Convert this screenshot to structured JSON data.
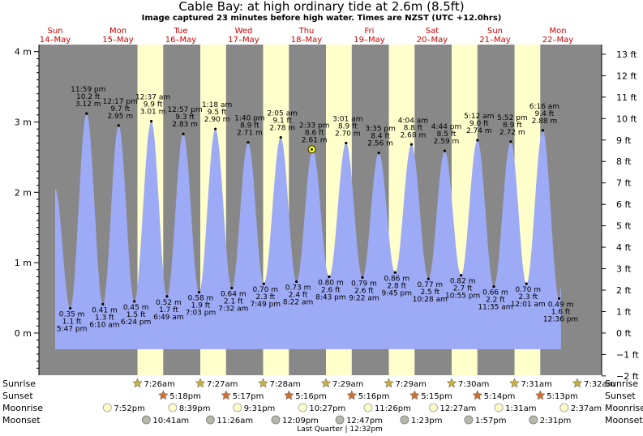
{
  "header": {
    "title": "Cable Bay: at high  ordinary tide at 2.6m (8.5ft)",
    "subtitle": "Image captured 23 minutes before high water. Times are NZST (UTC +12.0hrs)"
  },
  "colors": {
    "water": "#9daaf5",
    "night": "#888888",
    "day": "#ffffcc",
    "date_text": "#cc0000",
    "dot": "#ffff00"
  },
  "chart_data": {
    "type": "area",
    "title": "Cable Bay: at high  ordinary tide at 2.6m (8.5ft)",
    "subtitle": "Image captured 23 minutes before high water. Times are NZST (UTC +12.0hrs)",
    "y_left_ticks": [
      {
        "v": 4,
        "label": "4 m"
      },
      {
        "v": 3,
        "label": "3 m"
      },
      {
        "v": 2,
        "label": "2 m"
      },
      {
        "v": 1,
        "label": "1 m"
      },
      {
        "v": 0,
        "label": "0 m"
      }
    ],
    "y_right_ticks": [
      "13 ft",
      "12 ft",
      "11 ft",
      "10 ft",
      "9 ft",
      "8 ft",
      "7 ft",
      "6 ft",
      "5 ft",
      "4 ft",
      "3 ft",
      "2 ft",
      "1 ft",
      "0 ft",
      "−1 ft",
      "−2 ft"
    ],
    "ylim_m": [
      -0.6,
      4.1
    ],
    "days": [
      {
        "day": "Sun",
        "date": "14–May",
        "t": 0
      },
      {
        "day": "Mon",
        "date": "15–May",
        "t": 1
      },
      {
        "day": "Tue",
        "date": "16–May",
        "t": 2
      },
      {
        "day": "Wed",
        "date": "17–May",
        "t": 3
      },
      {
        "day": "Thu",
        "date": "18–May",
        "t": 4
      },
      {
        "day": "Fri",
        "date": "19–May",
        "t": 5
      },
      {
        "day": "Sat",
        "date": "20–May",
        "t": 6
      },
      {
        "day": "Sun",
        "date": "21–May",
        "t": 7
      },
      {
        "day": "Mon",
        "date": "22–May",
        "t": 8
      }
    ],
    "daylight": [
      {
        "rise": 1.31,
        "set": 1.72
      },
      {
        "rise": 2.31,
        "set": 2.72
      },
      {
        "rise": 3.31,
        "set": 3.72
      },
      {
        "rise": 4.31,
        "set": 4.72
      },
      {
        "rise": 5.31,
        "set": 5.72
      },
      {
        "rise": 6.31,
        "set": 6.72
      },
      {
        "rise": 7.31,
        "set": 7.72
      }
    ],
    "tides": [
      {
        "t": 0.24,
        "m": 0.35,
        "type": "low",
        "time": "5:47 pm",
        "m_label": "0.35 m",
        "ft": "1.1 ft"
      },
      {
        "t": 0.5,
        "m": 3.12,
        "type": "high",
        "time": "11:59 pm",
        "m_label": "3.12 m",
        "ft": "10.2 ft"
      },
      {
        "t": 0.76,
        "m": 0.41,
        "type": "low",
        "time": "6:10 am",
        "m_label": "0.41 m",
        "ft": "1.3 ft"
      },
      {
        "t": 1.01,
        "m": 2.95,
        "type": "high",
        "time": "12:17 pm",
        "m_label": "2.95 m",
        "ft": "9.7 ft"
      },
      {
        "t": 1.26,
        "m": 0.45,
        "type": "low",
        "time": "6:24 pm",
        "m_label": "0.45 m",
        "ft": "1.5 ft"
      },
      {
        "t": 1.53,
        "m": 3.01,
        "type": "high",
        "time": "12:37 am",
        "m_label": "3.01 m",
        "ft": "9.9 ft"
      },
      {
        "t": 1.78,
        "m": 0.52,
        "type": "low",
        "time": "6:49 am",
        "m_label": "0.52 m",
        "ft": "1.7 ft"
      },
      {
        "t": 2.04,
        "m": 2.83,
        "type": "high",
        "time": "12:57 pm",
        "m_label": "2.83 m",
        "ft": "9.3 ft"
      },
      {
        "t": 2.29,
        "m": 0.58,
        "type": "low",
        "time": "7:03 pm",
        "m_label": "0.58 m",
        "ft": "1.9 ft"
      },
      {
        "t": 2.55,
        "m": 2.9,
        "type": "high",
        "time": "1:18 am",
        "m_label": "2.90 m",
        "ft": "9.5 ft"
      },
      {
        "t": 2.81,
        "m": 0.64,
        "type": "low",
        "time": "7:32 am",
        "m_label": "0.64 m",
        "ft": "2.1 ft"
      },
      {
        "t": 3.07,
        "m": 2.71,
        "type": "high",
        "time": "1:40 pm",
        "m_label": "2.71 m",
        "ft": "8.9 ft"
      },
      {
        "t": 3.32,
        "m": 0.7,
        "type": "low",
        "time": "7:49 pm",
        "m_label": "0.70 m",
        "ft": "2.3 ft"
      },
      {
        "t": 3.59,
        "m": 2.78,
        "type": "high",
        "time": "2:05 am",
        "m_label": "2.78 m",
        "ft": "9.1 ft"
      },
      {
        "t": 3.84,
        "m": 0.73,
        "type": "low",
        "time": "8:22 am",
        "m_label": "0.73 m",
        "ft": "2.4 ft"
      },
      {
        "t": 4.1,
        "m": 2.61,
        "type": "high",
        "time": "2:33 pm",
        "m_label": "2.61 m",
        "ft": "8.6 ft"
      },
      {
        "t": 4.36,
        "m": 0.8,
        "type": "low",
        "time": "8:43 pm",
        "m_label": "0.80 m",
        "ft": "2.6 ft"
      },
      {
        "t": 4.63,
        "m": 2.7,
        "type": "high",
        "time": "3:01 am",
        "m_label": "2.70 m",
        "ft": "8.9 ft"
      },
      {
        "t": 4.89,
        "m": 0.79,
        "type": "low",
        "time": "9:22 am",
        "m_label": "0.79 m",
        "ft": "2.6 ft"
      },
      {
        "t": 5.15,
        "m": 2.56,
        "type": "high",
        "time": "3:35 pm",
        "m_label": "2.56 m",
        "ft": "8.4 ft"
      },
      {
        "t": 5.41,
        "m": 0.86,
        "type": "low",
        "time": "9:45 pm",
        "m_label": "0.86 m",
        "ft": "2.8 ft"
      },
      {
        "t": 5.67,
        "m": 2.68,
        "type": "high",
        "time": "4:04 am",
        "m_label": "2.68 m",
        "ft": "8.8 ft"
      },
      {
        "t": 5.94,
        "m": 0.77,
        "type": "low",
        "time": "10:28 am",
        "m_label": "0.77 m",
        "ft": "2.5 ft"
      },
      {
        "t": 6.2,
        "m": 2.59,
        "type": "high",
        "time": "4:44 pm",
        "m_label": "2.59 m",
        "ft": "8.5 ft"
      },
      {
        "t": 6.46,
        "m": 0.82,
        "type": "low",
        "time": "10:55 pm",
        "m_label": "0.82 m",
        "ft": "2.7 ft"
      },
      {
        "t": 6.72,
        "m": 2.74,
        "type": "high",
        "time": "5:12 am",
        "m_label": "2.74 m",
        "ft": "9.0 ft"
      },
      {
        "t": 6.98,
        "m": 0.66,
        "type": "low",
        "time": "11:35 am",
        "m_label": "0.66 m",
        "ft": "2.2 ft"
      },
      {
        "t": 7.25,
        "m": 2.72,
        "type": "high",
        "time": "5:52 pm",
        "m_label": "2.72 m",
        "ft": "8.9 ft"
      },
      {
        "t": 7.5,
        "m": 0.7,
        "type": "low",
        "time": "12:01 am",
        "m_label": "0.70 m",
        "ft": "2.3 ft"
      },
      {
        "t": 7.76,
        "m": 2.88,
        "type": "high",
        "time": "6:16 am",
        "m_label": "2.88 m",
        "ft": "9.4 ft"
      },
      {
        "t": 8.02,
        "m": 0.49,
        "type": "low",
        "time": "12:36 pm",
        "m_label": "0.49 m",
        "ft": "1.6 ft"
      }
    ],
    "current": {
      "t": 4.085,
      "m": 2.61
    },
    "series_range": {
      "t_start": 0.0,
      "m_start": 2.05,
      "t_end": 8.05,
      "m_end": 0.65
    }
  },
  "rows": {
    "labels": [
      "Sunrise",
      "Sunset",
      "Moonrise",
      "Moonset"
    ],
    "sunrise": [
      {
        "t": 1.31,
        "label": "7:26am"
      },
      {
        "t": 2.31,
        "label": "7:27am"
      },
      {
        "t": 3.31,
        "label": "7:28am"
      },
      {
        "t": 4.31,
        "label": "7:29am"
      },
      {
        "t": 5.31,
        "label": "7:29am"
      },
      {
        "t": 6.31,
        "label": "7:30am"
      },
      {
        "t": 7.31,
        "label": "7:31am"
      },
      {
        "t": 8.31,
        "label": "7:32am"
      }
    ],
    "sunset": [
      {
        "t": 1.72,
        "label": "5:18pm"
      },
      {
        "t": 2.72,
        "label": "5:17pm"
      },
      {
        "t": 3.72,
        "label": "5:16pm"
      },
      {
        "t": 4.72,
        "label": "5:16pm"
      },
      {
        "t": 5.72,
        "label": "5:15pm"
      },
      {
        "t": 6.72,
        "label": "5:14pm"
      },
      {
        "t": 7.72,
        "label": "5:13pm"
      }
    ],
    "moonrise": [
      {
        "t": 0.83,
        "label": "7:52pm"
      },
      {
        "t": 1.87,
        "label": "8:39pm"
      },
      {
        "t": 2.9,
        "label": "9:31pm"
      },
      {
        "t": 3.94,
        "label": "10:27pm"
      },
      {
        "t": 4.98,
        "label": "11:26pm"
      },
      {
        "t": 6.02,
        "label": "12:27am"
      },
      {
        "t": 7.06,
        "label": "1:31am"
      },
      {
        "t": 8.1,
        "label": "2:37am"
      }
    ],
    "moonset": [
      {
        "t": 1.45,
        "label": "10:41am"
      },
      {
        "t": 2.47,
        "label": "11:26am"
      },
      {
        "t": 3.51,
        "label": "12:09pm"
      },
      {
        "t": 4.53,
        "label": "12:47pm"
      },
      {
        "t": 5.56,
        "label": "1:23pm"
      },
      {
        "t": 6.58,
        "label": "1:57pm"
      },
      {
        "t": 7.61,
        "label": "2:31pm"
      }
    ],
    "moon_phase": {
      "t": 4.53,
      "label": "Last Quarter | 12:32pm"
    }
  }
}
